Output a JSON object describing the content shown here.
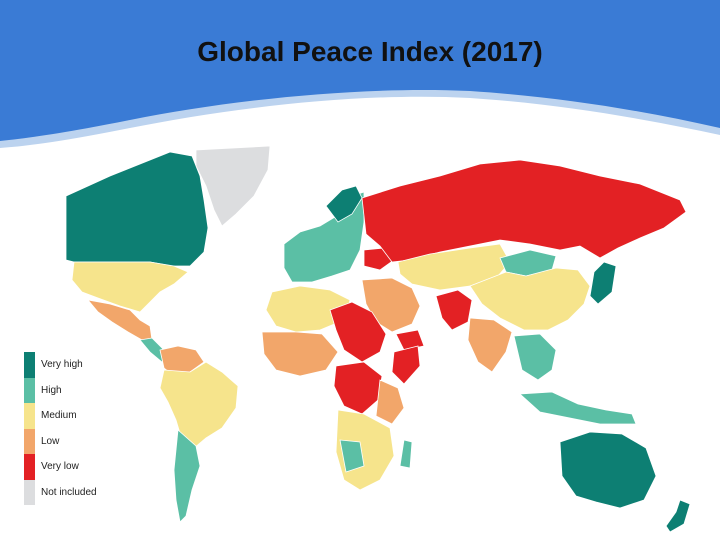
{
  "slide": {
    "title": "Global Peace Index (2017)"
  },
  "theme": {
    "header_blue": "#3a7bd5",
    "header_blue_dark": "#2f6cc4",
    "header_light": "#bcd3ef"
  },
  "legend": {
    "items": [
      {
        "label": "Very high",
        "color": "#0d7f73"
      },
      {
        "label": "High",
        "color": "#5bbfa5"
      },
      {
        "label": "Medium",
        "color": "#f6e48c"
      },
      {
        "label": "Low",
        "color": "#f2a66a"
      },
      {
        "label": "Very low",
        "color": "#e32124"
      },
      {
        "label": "Not included",
        "color": "#dcdddf"
      }
    ]
  },
  "colors": {
    "ocean": "#ffffff",
    "border": "#ffffff"
  }
}
